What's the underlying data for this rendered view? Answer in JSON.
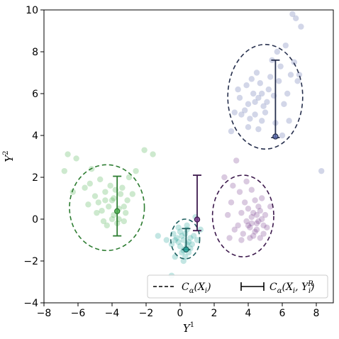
{
  "chart_data": {
    "type": "scatter",
    "title": "",
    "xlabel": "Y",
    "xlabel_sup": "1",
    "ylabel": "Y",
    "ylabel_sup": "2",
    "xlim": [
      -8,
      9
    ],
    "ylim": [
      -4,
      10
    ],
    "xticks": [
      -8,
      -6,
      -4,
      -2,
      0,
      2,
      4,
      6,
      8
    ],
    "yticks": [
      -4,
      -2,
      0,
      2,
      4,
      6,
      8,
      10
    ],
    "grid": false,
    "legend": {
      "position": "bottom-right",
      "entries": [
        {
          "style": "dashed-line",
          "label_main": "C",
          "label_sub": "α",
          "label_args": "(X",
          "label_args_sub": "i",
          "label_tail": ")"
        },
        {
          "style": "error-bar",
          "label_main": "C",
          "label_sub": "α",
          "label_args": "(X",
          "label_args_sub": "i",
          "label_mid": ", Y",
          "label_mid_sup": "R",
          "label_mid_sub": "i",
          "label_tail": ")"
        }
      ]
    },
    "clusters": [
      {
        "color": "#4caf50",
        "ellipse": {
          "cx": -4.3,
          "cy": 0.55,
          "rx": 2.2,
          "ry": 2.05,
          "color": "#2e7d32"
        },
        "error_bar": {
          "x": -3.7,
          "y_low": -0.8,
          "y_high": 2.05,
          "point_y": 0.38,
          "color": "#2e7d32"
        },
        "points": [
          [
            -4.2,
            0.6
          ],
          [
            -3.6,
            0.5
          ],
          [
            -4.4,
            0.9
          ],
          [
            -3.9,
            0.2
          ],
          [
            -4.6,
            0.4
          ],
          [
            -3.5,
            1.2
          ],
          [
            -4.0,
            0.9
          ],
          [
            -3.3,
            0.6
          ],
          [
            -4.8,
            0.8
          ],
          [
            -3.8,
            1.4
          ],
          [
            -4.5,
            -0.1
          ],
          [
            -3.6,
            0.0
          ],
          [
            -3.1,
            0.9
          ],
          [
            -5.0,
            1.1
          ],
          [
            -4.1,
            1.6
          ],
          [
            -3.4,
            1.5
          ],
          [
            -4.9,
            0.3
          ],
          [
            -5.3,
            1.7
          ],
          [
            -3.2,
            0.3
          ],
          [
            -4.3,
            -0.3
          ],
          [
            -6.1,
            2.9
          ],
          [
            -6.6,
            3.1
          ],
          [
            -5.2,
            2.4
          ],
          [
            -2.6,
            2.3
          ],
          [
            -2.1,
            3.3
          ],
          [
            -1.6,
            3.1
          ],
          [
            -6.8,
            2.3
          ],
          [
            -5.6,
            1.5
          ],
          [
            -3.0,
            2.0
          ],
          [
            -4.7,
            1.9
          ],
          [
            -2.8,
            1.2
          ],
          [
            -3.7,
            -0.2
          ],
          [
            -5.4,
            0.7
          ],
          [
            -4.0,
            0.0
          ],
          [
            -3.3,
            -0.1
          ],
          [
            -3.9,
            1.0
          ],
          [
            -4.4,
            1.3
          ],
          [
            -6.3,
            1.3
          ]
        ]
      },
      {
        "color": "#26a69a",
        "ellipse": {
          "cx": 0.3,
          "cy": -0.95,
          "rx": 0.85,
          "ry": 0.95,
          "color": "#1b5e5e"
        },
        "error_bar": {
          "x": 0.35,
          "y_low": -1.45,
          "y_high": -0.45,
          "point_y": -1.45,
          "color": "#1b5e5e"
        },
        "points": [
          [
            0.2,
            -1.0
          ],
          [
            0.4,
            -1.2
          ],
          [
            0.1,
            -0.8
          ],
          [
            0.3,
            -1.4
          ],
          [
            -0.1,
            -1.1
          ],
          [
            0.6,
            -0.9
          ],
          [
            0.0,
            -1.3
          ],
          [
            0.5,
            -1.1
          ],
          [
            0.3,
            -0.7
          ],
          [
            -0.2,
            -0.9
          ],
          [
            0.7,
            -1.2
          ],
          [
            0.2,
            -1.5
          ],
          [
            -0.3,
            -1.0
          ],
          [
            0.4,
            -0.5
          ],
          [
            0.1,
            -1.6
          ],
          [
            0.8,
            -0.8
          ],
          [
            -0.4,
            -0.7
          ],
          [
            0.5,
            -1.6
          ],
          [
            0.0,
            -0.6
          ],
          [
            0.6,
            -1.4
          ],
          [
            -0.5,
            -1.2
          ],
          [
            0.3,
            -1.8
          ],
          [
            1.0,
            -1.0
          ],
          [
            -0.1,
            -0.4
          ],
          [
            -1.3,
            -0.8
          ],
          [
            0.9,
            0.1
          ],
          [
            -0.3,
            -1.8
          ],
          [
            0.2,
            -2.0
          ],
          [
            -0.5,
            -2.7
          ],
          [
            1.2,
            -0.5
          ],
          [
            -0.8,
            -1.0
          ],
          [
            0.4,
            -0.3
          ]
        ]
      },
      {
        "color": "#7b3f8f",
        "ellipse": {
          "cx": 3.7,
          "cy": 0.15,
          "rx": 1.8,
          "ry": 1.95,
          "color": "#3d1a4d"
        },
        "error_bar": {
          "x": 1.0,
          "y_low": -0.55,
          "y_high": 2.1,
          "point_y": -0.02,
          "color": "#3d1a4d"
        },
        "points": [
          [
            4.5,
            -0.2
          ],
          [
            4.3,
            0.3
          ],
          [
            4.8,
            0.0
          ],
          [
            4.1,
            -0.4
          ],
          [
            4.6,
            0.6
          ],
          [
            4.4,
            -0.6
          ],
          [
            4.9,
            -0.3
          ],
          [
            4.2,
            0.1
          ],
          [
            4.7,
            0.4
          ],
          [
            4.5,
            -0.5
          ],
          [
            3.9,
            -0.1
          ],
          [
            4.0,
            0.5
          ],
          [
            5.0,
            0.2
          ],
          [
            4.3,
            -0.8
          ],
          [
            4.6,
            -0.1
          ],
          [
            3.6,
            0.3
          ],
          [
            3.4,
            -0.3
          ],
          [
            5.1,
            -0.4
          ],
          [
            3.8,
            0.8
          ],
          [
            4.1,
            -0.9
          ],
          [
            3.0,
            0.8
          ],
          [
            3.2,
            -0.5
          ],
          [
            2.8,
            0.2
          ],
          [
            4.8,
            1.0
          ],
          [
            3.5,
            1.3
          ],
          [
            3.1,
            1.6
          ],
          [
            2.6,
            2.0
          ],
          [
            4.2,
            1.4
          ],
          [
            3.7,
            -0.7
          ],
          [
            4.9,
            -0.7
          ],
          [
            3.3,
            2.8
          ],
          [
            2.9,
            -0.9
          ],
          [
            4.4,
            0.9
          ],
          [
            3.9,
            1.8
          ],
          [
            4.0,
            -0.3
          ],
          [
            4.7,
            -0.9
          ],
          [
            3.6,
            -1.0
          ],
          [
            5.3,
            0.6
          ],
          [
            4.5,
            0.2
          ],
          [
            4.2,
            -0.2
          ]
        ]
      },
      {
        "color": "#5c6bab",
        "ellipse": {
          "cx": 5.0,
          "cy": 5.85,
          "rx": 2.2,
          "ry": 2.5,
          "color": "#262f4d"
        },
        "error_bar": {
          "x": 5.6,
          "y_low": 3.9,
          "y_high": 7.6,
          "point_y": 3.95,
          "color": "#262f4d"
        },
        "points": [
          [
            4.0,
            5.5
          ],
          [
            4.3,
            6.0
          ],
          [
            3.8,
            5.2
          ],
          [
            4.6,
            5.8
          ],
          [
            4.9,
            5.4
          ],
          [
            5.2,
            6.2
          ],
          [
            4.4,
            5.0
          ],
          [
            3.9,
            6.4
          ],
          [
            4.7,
            6.5
          ],
          [
            5.5,
            5.9
          ],
          [
            4.1,
            4.8
          ],
          [
            3.6,
            5.0
          ],
          [
            4.8,
            4.7
          ],
          [
            5.3,
            6.8
          ],
          [
            4.5,
            7.0
          ],
          [
            3.5,
            5.8
          ],
          [
            5.0,
            5.1
          ],
          [
            4.2,
            6.7
          ],
          [
            5.8,
            6.6
          ],
          [
            6.1,
            5.5
          ],
          [
            5.6,
            4.6
          ],
          [
            6.3,
            6.0
          ],
          [
            4.0,
            4.4
          ],
          [
            3.2,
            5.1
          ],
          [
            6.5,
            6.9
          ],
          [
            5.9,
            7.3
          ],
          [
            6.7,
            7.5
          ],
          [
            6.2,
            8.3
          ],
          [
            5.7,
            8.0
          ],
          [
            6.9,
            6.6
          ],
          [
            7.0,
            6.9
          ],
          [
            6.6,
            9.8
          ],
          [
            7.1,
            9.2
          ],
          [
            6.8,
            9.6
          ],
          [
            3.4,
            6.2
          ],
          [
            4.6,
            4.3
          ],
          [
            5.4,
            7.6
          ],
          [
            6.0,
            4.0
          ],
          [
            3.0,
            4.2
          ],
          [
            6.4,
            4.7
          ],
          [
            8.3,
            2.3
          ],
          [
            4.8,
            6.0
          ],
          [
            5.1,
            5.6
          ],
          [
            4.4,
            5.6
          ]
        ]
      }
    ]
  }
}
